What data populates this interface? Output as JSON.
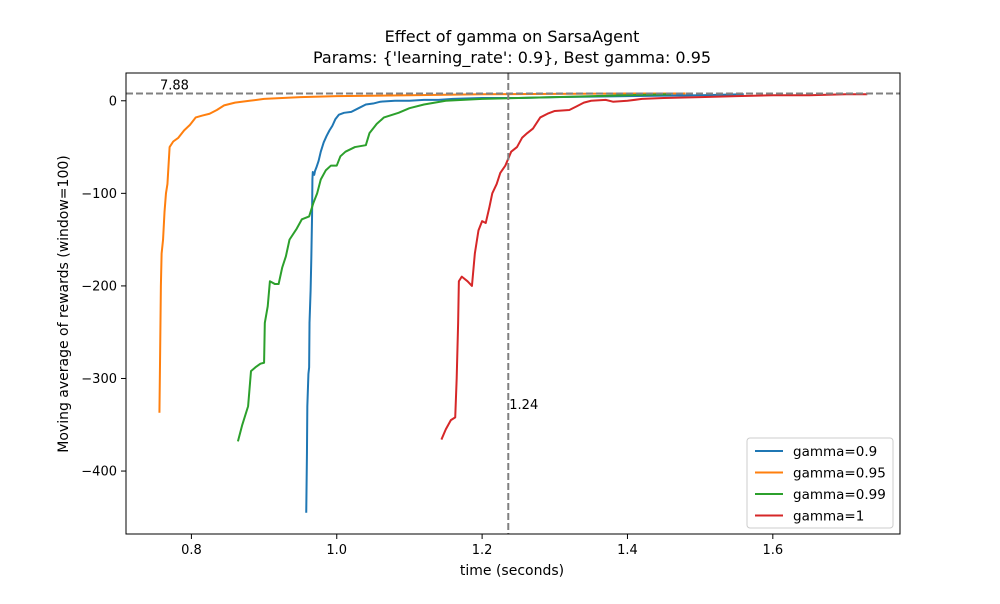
{
  "chart_data": {
    "type": "line",
    "title": "Effect of gamma on SarsaAgent",
    "subtitle": "Params: {'learning_rate': 0.9}, Best gamma: 0.95",
    "xlabel": "time (seconds)",
    "ylabel": "Moving average of rewards (window=100)",
    "xlim": [
      0.71,
      1.775
    ],
    "ylim": [
      -468,
      30
    ],
    "xticks": [
      0.8,
      1.0,
      1.2,
      1.4,
      1.6
    ],
    "xtick_labels": [
      "0.8",
      "1.0",
      "1.2",
      "1.4",
      "1.6"
    ],
    "yticks": [
      0,
      -100,
      -200,
      -300,
      -400
    ],
    "ytick_labels": [
      "0",
      "−100",
      "−200",
      "−300",
      "−400"
    ],
    "grid": false,
    "legend_position": "lower-right",
    "annotations": {
      "hline": {
        "y": 7.88,
        "label": "7.88",
        "color": "#808080",
        "style": "dashed"
      },
      "vline": {
        "x": 1.236,
        "label": "1.24",
        "color": "#808080",
        "style": "dashed"
      }
    },
    "series": [
      {
        "name": "gamma=0.9",
        "color": "#1f77b4",
        "points": [
          [
            0.958,
            -445
          ],
          [
            0.959,
            -380
          ],
          [
            0.9595,
            -330
          ],
          [
            0.961,
            -295
          ],
          [
            0.962,
            -288
          ],
          [
            0.9625,
            -240
          ],
          [
            0.964,
            -205
          ],
          [
            0.965,
            -170
          ],
          [
            0.966,
            -125
          ],
          [
            0.9665,
            -85
          ],
          [
            0.967,
            -77
          ],
          [
            0.969,
            -80
          ],
          [
            0.97,
            -76
          ],
          [
            0.972,
            -72
          ],
          [
            0.975,
            -65
          ],
          [
            0.978,
            -55
          ],
          [
            0.982,
            -45
          ],
          [
            0.986,
            -38
          ],
          [
            0.99,
            -32
          ],
          [
            0.994,
            -27
          ],
          [
            0.998,
            -20
          ],
          [
            1.003,
            -15
          ],
          [
            1.01,
            -13
          ],
          [
            1.02,
            -12
          ],
          [
            1.03,
            -8
          ],
          [
            1.04,
            -4
          ],
          [
            1.05,
            -3
          ],
          [
            1.06,
            -1
          ],
          [
            1.08,
            0
          ],
          [
            1.1,
            0
          ],
          [
            1.12,
            1
          ],
          [
            1.14,
            1
          ],
          [
            1.16,
            2
          ],
          [
            1.2,
            3
          ],
          [
            1.25,
            3
          ],
          [
            1.3,
            4
          ],
          [
            1.4,
            5
          ],
          [
            1.5,
            6
          ],
          [
            1.56,
            7
          ]
        ]
      },
      {
        "name": "gamma=0.95",
        "color": "#ff7f0e",
        "points": [
          [
            0.756,
            -337
          ],
          [
            0.757,
            -270
          ],
          [
            0.758,
            -200
          ],
          [
            0.759,
            -165
          ],
          [
            0.761,
            -150
          ],
          [
            0.763,
            -120
          ],
          [
            0.765,
            -100
          ],
          [
            0.767,
            -90
          ],
          [
            0.77,
            -50
          ],
          [
            0.775,
            -44
          ],
          [
            0.782,
            -40
          ],
          [
            0.79,
            -32
          ],
          [
            0.798,
            -26
          ],
          [
            0.806,
            -18
          ],
          [
            0.815,
            -16
          ],
          [
            0.825,
            -14
          ],
          [
            0.835,
            -10
          ],
          [
            0.845,
            -5
          ],
          [
            0.86,
            -2
          ],
          [
            0.88,
            0
          ],
          [
            0.9,
            2
          ],
          [
            0.95,
            4
          ],
          [
            1.0,
            5
          ],
          [
            1.1,
            6
          ],
          [
            1.2,
            7
          ],
          [
            1.3,
            7.5
          ],
          [
            1.4,
            7.8
          ],
          [
            1.48,
            7.9
          ]
        ]
      },
      {
        "name": "gamma=0.99",
        "color": "#2ca02c",
        "points": [
          [
            0.864,
            -368
          ],
          [
            0.87,
            -350
          ],
          [
            0.878,
            -330
          ],
          [
            0.882,
            -292
          ],
          [
            0.888,
            -288
          ],
          [
            0.895,
            -284
          ],
          [
            0.9,
            -283
          ],
          [
            0.901,
            -240
          ],
          [
            0.905,
            -222
          ],
          [
            0.908,
            -195
          ],
          [
            0.915,
            -198
          ],
          [
            0.92,
            -198
          ],
          [
            0.925,
            -180
          ],
          [
            0.93,
            -168
          ],
          [
            0.935,
            -150
          ],
          [
            0.945,
            -138
          ],
          [
            0.952,
            -128
          ],
          [
            0.962,
            -125
          ],
          [
            0.968,
            -110
          ],
          [
            0.973,
            -100
          ],
          [
            0.978,
            -85
          ],
          [
            0.985,
            -75
          ],
          [
            0.992,
            -70
          ],
          [
            1.0,
            -70
          ],
          [
            1.005,
            -60
          ],
          [
            1.012,
            -55
          ],
          [
            1.025,
            -50
          ],
          [
            1.04,
            -48
          ],
          [
            1.045,
            -35
          ],
          [
            1.055,
            -25
          ],
          [
            1.065,
            -18
          ],
          [
            1.085,
            -13
          ],
          [
            1.1,
            -8
          ],
          [
            1.12,
            -4
          ],
          [
            1.15,
            0
          ],
          [
            1.2,
            2
          ],
          [
            1.3,
            4
          ],
          [
            1.4,
            6
          ],
          [
            1.46,
            7
          ]
        ]
      },
      {
        "name": "gamma=1",
        "color": "#d62728",
        "points": [
          [
            1.144,
            -366
          ],
          [
            1.15,
            -355
          ],
          [
            1.157,
            -345
          ],
          [
            1.163,
            -342
          ],
          [
            1.165,
            -300
          ],
          [
            1.167,
            -240
          ],
          [
            1.168,
            -195
          ],
          [
            1.172,
            -190
          ],
          [
            1.18,
            -195
          ],
          [
            1.186,
            -200
          ],
          [
            1.19,
            -165
          ],
          [
            1.195,
            -140
          ],
          [
            1.2,
            -130
          ],
          [
            1.205,
            -132
          ],
          [
            1.21,
            -115
          ],
          [
            1.214,
            -100
          ],
          [
            1.22,
            -90
          ],
          [
            1.225,
            -78
          ],
          [
            1.232,
            -70
          ],
          [
            1.24,
            -55
          ],
          [
            1.248,
            -50
          ],
          [
            1.255,
            -40
          ],
          [
            1.262,
            -35
          ],
          [
            1.27,
            -30
          ],
          [
            1.28,
            -18
          ],
          [
            1.29,
            -14
          ],
          [
            1.3,
            -11
          ],
          [
            1.32,
            -10
          ],
          [
            1.33,
            -6
          ],
          [
            1.34,
            -2
          ],
          [
            1.35,
            0
          ],
          [
            1.37,
            1
          ],
          [
            1.38,
            -1
          ],
          [
            1.4,
            0
          ],
          [
            1.42,
            2
          ],
          [
            1.45,
            3
          ],
          [
            1.5,
            4
          ],
          [
            1.55,
            5
          ],
          [
            1.6,
            6
          ],
          [
            1.65,
            6
          ],
          [
            1.7,
            7
          ],
          [
            1.73,
            7
          ]
        ]
      }
    ]
  }
}
